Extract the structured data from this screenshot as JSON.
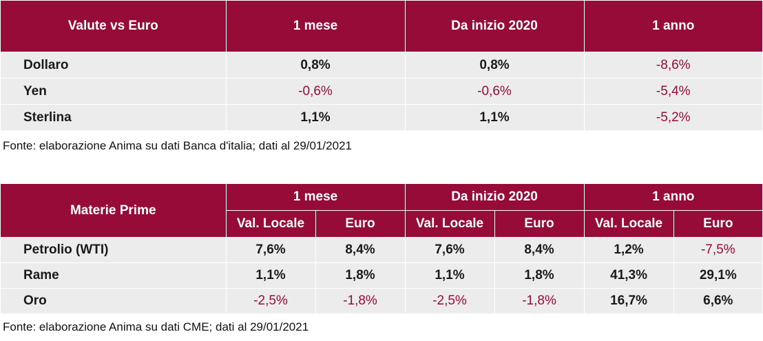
{
  "table_currencies": {
    "headers": [
      "Valute vs Euro",
      "1 mese",
      "Da inizio 2020",
      "1 anno"
    ],
    "rows": [
      {
        "label": "Dollaro",
        "m1": "0,8%",
        "ytd": "0,8%",
        "y1": "-8,6%"
      },
      {
        "label": "Yen",
        "m1": "-0,6%",
        "ytd": "-0,6%",
        "y1": "-5,4%"
      },
      {
        "label": "Sterlina",
        "m1": "1,1%",
        "ytd": "1,1%",
        "y1": "-5,2%"
      }
    ],
    "source": "Fonte: elaborazione Anima su dati Banca d'italia; dati al 29/01/2021"
  },
  "table_commodities": {
    "header_label": "Materie Prime",
    "groups": [
      "1 mese",
      "Da inizio 2020",
      "1 anno"
    ],
    "subheaders": [
      "Val. Locale",
      "Euro"
    ],
    "rows": [
      {
        "label": "Petrolio (WTI)",
        "values": [
          "7,6%",
          "8,4%",
          "7,6%",
          "8,4%",
          "1,2%",
          "-7,5%"
        ]
      },
      {
        "label": "Rame",
        "values": [
          "1,1%",
          "1,8%",
          "1,1%",
          "1,8%",
          "41,3%",
          "29,1%"
        ]
      },
      {
        "label": "Oro",
        "values": [
          "-2,5%",
          "-1,8%",
          "-2,5%",
          "-1,8%",
          "16,7%",
          "6,6%"
        ]
      }
    ],
    "source": "Fonte: elaborazione Anima su dati CME; dati al 29/01/2021"
  },
  "colors": {
    "header_bg": "#960b38",
    "negative_text": "#960b38",
    "row_bg": "#ececec"
  }
}
